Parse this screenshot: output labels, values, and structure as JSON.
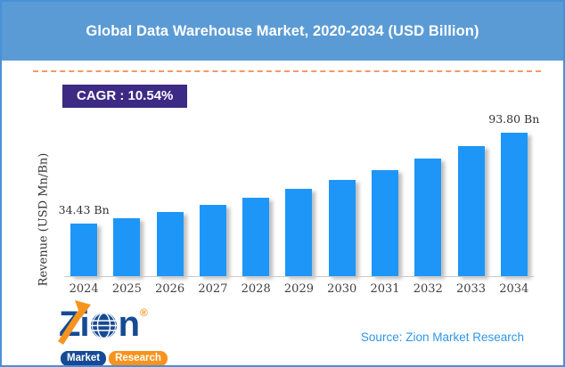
{
  "header": {
    "title": "Global Data Warehouse Market, 2020-2034 (USD Billion)",
    "bg_color": "#5b9bd5"
  },
  "cagr_badge": {
    "label": "CAGR :  10.54%",
    "bg_color": "#3d2a85"
  },
  "chart_data": {
    "type": "bar",
    "categories": [
      "2024",
      "2025",
      "2026",
      "2027",
      "2028",
      "2029",
      "2030",
      "2031",
      "2032",
      "2033",
      "2034"
    ],
    "values": [
      34.43,
      38.06,
      42.07,
      46.5,
      51.4,
      56.82,
      62.81,
      69.43,
      76.75,
      84.84,
      93.8
    ],
    "title": "Global Data Warehouse Market, 2020-2034 (USD Billion)",
    "xlabel": "",
    "ylabel": "Revenue (USD Mn/Bn)",
    "ylim": [
      0,
      100
    ],
    "grid": false,
    "legend": "none",
    "bar_color": "#1e96f8",
    "value_labels": {
      "first": "34.43 Bn",
      "last": "93.80 Bn"
    },
    "cagr_percent": "10.54%"
  },
  "footer": {
    "logo": {
      "brand_z": "Z",
      "brand_i": "i",
      "brand_n": "n",
      "registered": "®",
      "pill_market": "Market",
      "pill_research": "Research"
    },
    "source": "Source: Zion Market Research"
  },
  "colors": {
    "header_blue": "#5b9bd5",
    "bar_blue": "#1e96f8",
    "badge_purple": "#3d2a85",
    "dash_orange": "#f09a6a",
    "logo_navy": "#164a94",
    "logo_orange": "#f7941d",
    "source_blue": "#2e96e8",
    "frame_border": "#4a90d9"
  }
}
